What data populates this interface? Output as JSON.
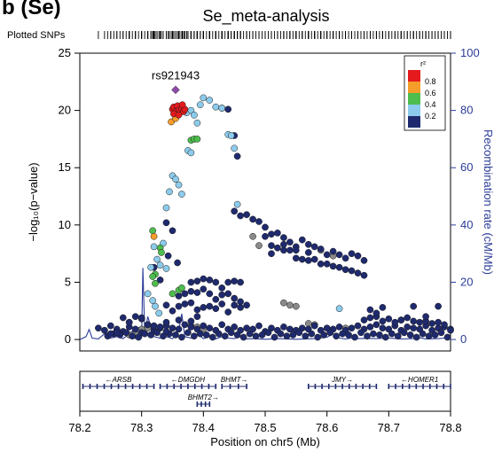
{
  "panel_label": "b (Se)",
  "chart_data": {
    "type": "scatter",
    "title": "Se_meta-analysis",
    "xlabel": "Position on chr5 (Mb)",
    "ylabel": "−log₁₀(p−value)",
    "y2label": "Recombination rate (cM/Mb)",
    "xlim": [
      78.2,
      78.8
    ],
    "ylim": [
      -1,
      25
    ],
    "y2lim": [
      -4,
      100
    ],
    "xticks": [
      "78.2",
      "78.3",
      "78.4",
      "78.5",
      "78.6",
      "78.7",
      "78.8"
    ],
    "yticks": [
      "0",
      "5",
      "10",
      "15",
      "20",
      "25"
    ],
    "y2ticks": [
      "0",
      "20",
      "40",
      "60",
      "80",
      "100"
    ],
    "plotted_snps_label": "Plotted SNPs",
    "lead_snp": {
      "name": "rs921943",
      "x": 78.355,
      "y": 21.8
    },
    "legend": {
      "title": "r²",
      "labels": [
        "0.8",
        "0.6",
        "0.4",
        "0.2"
      ],
      "colors": [
        "#e41a1c",
        "#f59d2a",
        "#4dbd4d",
        "#8ccbeb",
        "#1f2a6e"
      ]
    },
    "point_colors": {
      "red": "#e41a1c",
      "orange": "#f59d2a",
      "green": "#4dbd4d",
      "light_blue": "#8ccbeb",
      "navy": "#1f2a6e",
      "gray": "#8a8a8a",
      "lead": "#8e4aa8",
      "recombination_line": "#2b3c98"
    },
    "series": [
      {
        "color": "red",
        "x": [
          78.35,
          78.352,
          78.355,
          78.358,
          78.36,
          78.362,
          78.365,
          78.368,
          78.37,
          78.352,
          78.36,
          78.366
        ],
        "y": [
          20.1,
          20.3,
          19.9,
          20.4,
          20.0,
          19.8,
          20.2,
          19.9,
          20.1,
          19.7,
          19.6,
          20.5
        ]
      },
      {
        "color": "orange",
        "x": [
          78.348,
          78.355,
          78.32
        ],
        "y": [
          19.0,
          19.3,
          9.0
        ]
      },
      {
        "color": "green",
        "x": [
          78.38,
          78.385,
          78.39,
          78.318,
          78.322,
          78.33,
          78.332,
          78.35,
          78.36,
          78.365,
          78.322,
          78.318
        ],
        "y": [
          17.4,
          17.5,
          17.5,
          9.5,
          5.7,
          8.0,
          7.6,
          4.0,
          4.3,
          4.5,
          4.9,
          5.5
        ]
      },
      {
        "color": "light_blue",
        "x": [
          78.373,
          78.38,
          78.385,
          78.39,
          78.395,
          78.4,
          78.41,
          78.42,
          78.43,
          78.44,
          78.445,
          78.45,
          78.35,
          78.355,
          78.36,
          78.365,
          78.34,
          78.345,
          78.375,
          78.38,
          78.32,
          78.325,
          78.33,
          78.315,
          78.31,
          78.318,
          78.322,
          78.328,
          78.455,
          78.62,
          78.335,
          78.34
        ],
        "y": [
          19.8,
          20.0,
          19.6,
          18.9,
          20.5,
          21.1,
          20.9,
          20.3,
          20.2,
          17.9,
          17.8,
          16.7,
          14.3,
          14.0,
          13.5,
          12.7,
          11.5,
          12.9,
          16.5,
          16.3,
          8.1,
          7.0,
          6.5,
          6.3,
          4.0,
          3.4,
          2.9,
          2.3,
          11.8,
          2.7,
          8.4,
          6.2
        ]
      },
      {
        "color": "navy",
        "x": [
          78.43,
          78.44,
          78.45,
          78.455,
          78.34,
          78.343,
          78.32,
          78.33,
          78.35,
          78.358,
          78.45,
          78.46,
          78.47,
          78.48,
          78.49,
          78.5,
          78.51,
          78.52,
          78.53,
          78.54,
          78.55,
          78.56,
          78.57,
          78.58,
          78.59,
          78.6,
          78.61,
          78.62,
          78.63,
          78.64,
          78.65,
          78.66,
          78.51,
          78.52,
          78.53,
          78.54,
          78.55,
          78.56,
          78.57,
          78.58,
          78.59,
          78.6,
          78.61,
          78.62,
          78.63,
          78.64,
          78.65,
          78.66,
          78.5,
          78.51,
          78.53,
          78.55,
          78.57,
          78.38,
          78.39,
          78.4,
          78.41,
          78.42,
          78.43,
          78.44,
          78.45,
          78.46,
          78.36,
          78.37,
          78.38,
          78.39,
          78.4,
          78.41,
          78.42,
          78.43,
          78.44,
          78.45,
          78.46,
          78.47,
          78.34,
          78.35,
          78.36,
          78.37,
          78.38,
          78.39,
          78.4,
          78.41,
          78.42,
          78.43,
          78.44,
          78.45,
          78.46,
          78.23,
          78.24,
          78.25,
          78.26,
          78.27,
          78.28,
          78.29,
          78.3,
          78.31,
          78.32,
          78.33,
          78.34,
          78.35,
          78.36,
          78.37,
          78.38,
          78.39,
          78.4,
          78.41,
          78.42,
          78.43,
          78.44,
          78.45,
          78.46,
          78.47,
          78.48,
          78.49,
          78.5,
          78.51,
          78.52,
          78.53,
          78.54,
          78.55,
          78.56,
          78.57,
          78.58,
          78.59,
          78.6,
          78.61,
          78.62,
          78.63,
          78.64,
          78.65,
          78.66,
          78.67,
          78.68,
          78.69,
          78.7,
          78.71,
          78.72,
          78.73,
          78.74,
          78.75,
          78.76,
          78.77,
          78.78,
          78.79,
          78.8,
          78.245,
          78.255,
          78.265,
          78.275,
          78.285,
          78.295,
          78.305,
          78.315,
          78.325,
          78.335,
          78.345,
          78.355,
          78.365,
          78.375,
          78.385,
          78.395,
          78.405,
          78.415,
          78.425,
          78.435,
          78.445,
          78.455,
          78.465,
          78.475,
          78.485,
          78.495,
          78.505,
          78.515,
          78.525,
          78.535,
          78.545,
          78.555,
          78.565,
          78.575,
          78.585,
          78.595,
          78.605,
          78.615,
          78.625,
          78.635,
          78.645,
          78.655,
          78.665,
          78.675,
          78.685,
          78.695,
          78.705,
          78.715,
          78.725,
          78.735,
          78.745,
          78.755,
          78.765,
          78.775,
          78.785,
          78.795,
          78.66,
          78.67,
          78.68,
          78.69,
          78.7,
          78.71,
          78.72,
          78.73,
          78.74,
          78.75,
          78.76,
          78.77,
          78.78,
          78.79,
          78.67,
          78.68,
          78.69,
          78.72,
          78.74,
          78.76,
          78.78,
          78.8,
          78.27,
          78.28,
          78.29,
          78.3,
          78.31,
          78.33,
          78.34,
          78.36,
          78.38,
          78.39,
          78.25,
          78.26,
          78.28,
          78.3,
          78.32,
          78.34
        ],
        "y": [
          20.2,
          20.1,
          17.8,
          16.0,
          10.2,
          7.3,
          6.3,
          5.2,
          9.5,
          6.7,
          11.2,
          10.8,
          10.9,
          10.5,
          10.3,
          9.8,
          9.2,
          9.3,
          8.9,
          8.5,
          8.1,
          8.7,
          8.3,
          8.1,
          7.9,
          7.4,
          7.7,
          7.4,
          7.1,
          7.5,
          7.3,
          6.9,
          8.2,
          8.0,
          7.8,
          7.8,
          7.1,
          7.0,
          6.9,
          7.0,
          6.6,
          6.6,
          6.4,
          6.3,
          6.1,
          6.0,
          5.8,
          5.6,
          9.0,
          7.5,
          8.3,
          7.8,
          7.6,
          5.0,
          5.1,
          5.3,
          5.2,
          5.0,
          4.5,
          5.0,
          5.1,
          5.0,
          3.8,
          4.0,
          4.2,
          4.1,
          4.4,
          4.0,
          3.5,
          3.9,
          4.0,
          3.6,
          3.3,
          3.0,
          3.0,
          2.5,
          2.9,
          3.1,
          3.2,
          2.6,
          2.8,
          2.9,
          2.7,
          3.1,
          2.4,
          3.0,
          2.8,
          1.0,
          0.8,
          1.2,
          0.9,
          0.7,
          1.1,
          0.9,
          0.6,
          1.3,
          0.8,
          1.0,
          1.2,
          1.0,
          0.9,
          1.3,
          1.1,
          0.9,
          1.2,
          1.0,
          0.8,
          1.3,
          0.9,
          1.1,
          0.8,
          1.0,
          0.9,
          1.2,
          0.7,
          1.0,
          0.8,
          1.1,
          0.9,
          0.8,
          1.0,
          0.9,
          1.2,
          0.8,
          1.0,
          0.9,
          1.1,
          0.8,
          1.0,
          1.2,
          0.9,
          1.1,
          1.3,
          1.0,
          0.9,
          1.2,
          0.8,
          1.1,
          1.0,
          0.9,
          1.2,
          0.8,
          1.0,
          1.1,
          0.9,
          0.3,
          0.5,
          0.4,
          0.6,
          0.3,
          0.2,
          0.5,
          0.4,
          0.6,
          0.3,
          0.5,
          0.4,
          0.2,
          0.6,
          0.3,
          0.5,
          0.4,
          0.2,
          0.5,
          0.3,
          0.6,
          0.4,
          0.2,
          0.5,
          0.3,
          0.4,
          0.6,
          0.2,
          0.5,
          0.3,
          0.4,
          0.6,
          0.3,
          0.5,
          0.2,
          0.4,
          0.6,
          0.3,
          0.5,
          0.4,
          0.2,
          0.6,
          0.3,
          0.5,
          0.4,
          0.2,
          0.5,
          0.3,
          0.6,
          0.4,
          0.2,
          0.5,
          0.3,
          0.4,
          0.6,
          0.2,
          1.7,
          1.9,
          2.0,
          1.6,
          1.8,
          1.5,
          1.7,
          1.9,
          1.6,
          1.5,
          1.6,
          1.4,
          1.5,
          1.3,
          2.6,
          2.3,
          2.8,
          1.7,
          2.9,
          2.0,
          2.9,
          0.8,
          1.9,
          1.5,
          2.0,
          1.8,
          1.3,
          1.1,
          1.5,
          1.7,
          1.6,
          2.0,
          0.5,
          0.6,
          1.5,
          1.9,
          1.2,
          0.7
        ]
      },
      {
        "color": "gray",
        "x": [
          78.48,
          78.49,
          78.53,
          78.54,
          78.55,
          78.59,
          78.61,
          78.63,
          78.57,
          78.58,
          78.3,
          78.31,
          78.38,
          78.39,
          78.4,
          78.28,
          78.29
        ],
        "y": [
          9.0,
          8.2,
          3.2,
          3.0,
          2.9,
          7.8,
          7.3,
          1.0,
          1.4,
          1.3,
          0.9,
          1.0,
          1.2,
          1.1,
          0.9,
          0.4,
          0.5
        ]
      }
    ],
    "recombination": {
      "x": [
        78.2,
        78.21,
        78.215,
        78.22,
        78.23,
        78.24,
        78.25,
        78.26,
        78.27,
        78.28,
        78.285,
        78.29,
        78.295,
        78.3,
        78.302,
        78.305,
        78.31,
        78.32,
        78.33,
        78.34,
        78.35,
        78.36,
        78.365,
        78.37,
        78.38,
        78.39,
        78.4,
        78.41,
        78.42,
        78.43,
        78.44,
        78.45,
        78.46,
        78.47,
        78.48,
        78.5,
        78.52,
        78.55,
        78.58,
        78.6,
        78.61,
        78.62,
        78.63,
        78.64,
        78.65,
        78.66,
        78.68,
        78.7,
        78.72,
        78.74,
        78.75,
        78.76,
        78.78,
        78.79,
        78.8
      ],
      "y": [
        0,
        1,
        3.5,
        0.5,
        0.2,
        2,
        0.5,
        1,
        0.3,
        2,
        3,
        0.5,
        4,
        0.5,
        25,
        2,
        8,
        1,
        0.5,
        1,
        0.3,
        3,
        9,
        1,
        0.5,
        2,
        0.3,
        1,
        0.2,
        1,
        0.5,
        0.3,
        1,
        0.2,
        0.3,
        0.1,
        0.3,
        0.1,
        0.3,
        0.8,
        2,
        0.5,
        0.2,
        0.5,
        0.3,
        0.4,
        0.3,
        0.5,
        0.2,
        0.3,
        0.6,
        0.2,
        0.3,
        0.5,
        0.2
      ]
    },
    "genes": [
      {
        "name": "ARSB",
        "start": 78.205,
        "end": 78.32,
        "row": 0,
        "dir": "left"
      },
      {
        "name": "DMGDH",
        "start": 78.33,
        "end": 78.42,
        "row": 0,
        "dir": "left"
      },
      {
        "name": "BHMT",
        "start": 78.43,
        "end": 78.47,
        "row": 0,
        "dir": "right"
      },
      {
        "name": "JMY",
        "start": 78.57,
        "end": 78.68,
        "row": 0,
        "dir": "right"
      },
      {
        "name": "HOMER1",
        "start": 78.7,
        "end": 78.8,
        "row": 0,
        "dir": "left"
      },
      {
        "name": "BHMT2",
        "start": 78.39,
        "end": 78.41,
        "row": 1,
        "dir": "right"
      }
    ]
  }
}
